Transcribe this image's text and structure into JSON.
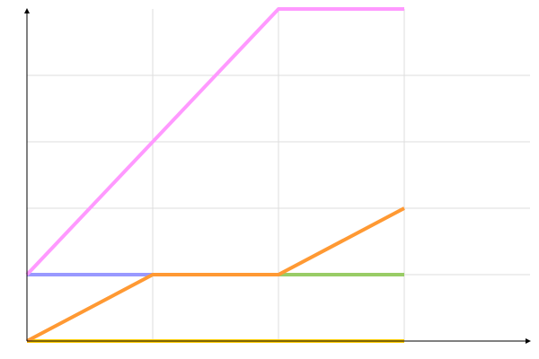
{
  "chart_data": {
    "type": "line",
    "title": "",
    "xlabel": "",
    "ylabel": "",
    "xlim": [
      0,
      4
    ],
    "ylim": [
      0,
      5
    ],
    "grid": true,
    "legend": "none",
    "series": [
      {
        "color": "#ffcc00",
        "x": [
          0,
          1,
          2,
          3
        ],
        "y": [
          0,
          0,
          0,
          0
        ]
      },
      {
        "color": "#99cc66",
        "x": [
          0,
          1,
          2,
          3
        ],
        "y": [
          1,
          1,
          1,
          1
        ]
      },
      {
        "color": "#9999ff",
        "x": [
          0,
          1
        ],
        "y": [
          1,
          1
        ]
      },
      {
        "color": "#ff9933",
        "x": [
          0,
          1,
          2,
          3
        ],
        "y": [
          0,
          1,
          1,
          2
        ]
      },
      {
        "color": "#ff99ff",
        "x": [
          0,
          1,
          2,
          3
        ],
        "y": [
          1,
          3,
          5,
          5
        ]
      }
    ]
  }
}
